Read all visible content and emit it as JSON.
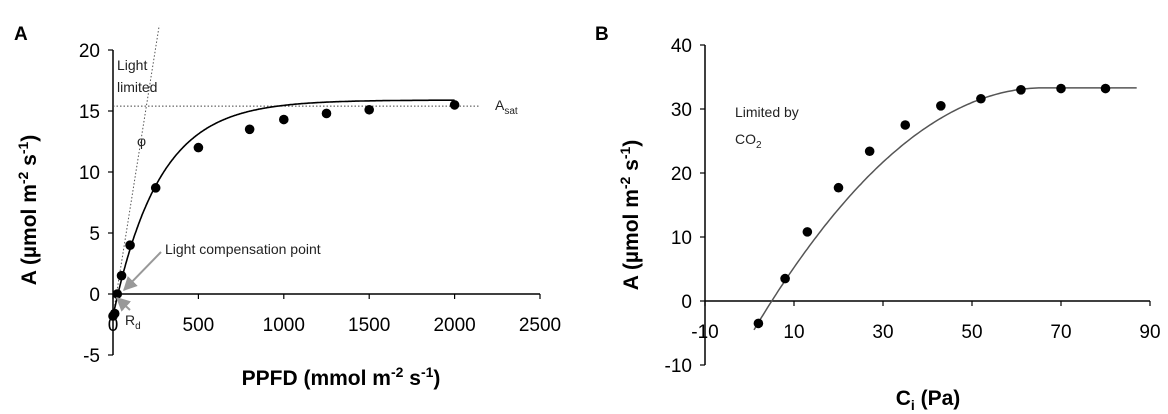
{
  "chart_data": [
    {
      "type": "scatter",
      "panel_label": "A",
      "xlabel": "PPFD (mmol m-2 s-1)",
      "xlabel_parts": {
        "pre": "PPFD (mmol m",
        "sup1": "-2",
        "mid": " s",
        "sup2": "-1",
        "post": ")"
      },
      "ylabel": "A (µmol m-2 s-1)",
      "ylabel_parts": {
        "pre": "A (µmol m",
        "sup1": "-2",
        "mid": " s",
        "sup2": "-1",
        "post": ")"
      },
      "xlim": [
        0,
        2500
      ],
      "ylim": [
        -5,
        20
      ],
      "xticks": [
        0,
        500,
        1000,
        1500,
        2000,
        2500
      ],
      "yticks": [
        -5,
        0,
        5,
        10,
        15,
        20
      ],
      "series": [
        {
          "x": [
            0,
            10,
            25,
            50,
            100,
            250,
            500,
            800,
            1000,
            1250,
            1500,
            2000
          ],
          "y": [
            -1.8,
            -1.6,
            0,
            1.5,
            4.0,
            8.7,
            12.0,
            13.5,
            14.3,
            14.8,
            15.1,
            15.5
          ]
        }
      ],
      "fit_curve": {
        "Amax": 17.7,
        "Rd": 1.8,
        "k": 0.0037
      },
      "reference_lines": [
        {
          "kind": "horizontal",
          "y": 15.4,
          "x_range": [
            0,
            2150
          ],
          "style": "dotted"
        },
        {
          "kind": "initial_slope",
          "slope": 0.088,
          "intercept": -1.8,
          "style": "dotted"
        }
      ],
      "annotations": {
        "light_limited_1": "Light",
        "light_limited_2": "limited",
        "phi": "φ",
        "asat_main": "A",
        "asat_sub": "sat",
        "lcp": "Light compensation point",
        "rd_main": "R",
        "rd_sub": "d"
      }
    },
    {
      "type": "scatter",
      "panel_label": "B",
      "xlabel": "Ci (Pa)",
      "xlabel_parts": {
        "main": "C",
        "sub": "i",
        "post": " (Pa)"
      },
      "ylabel": "A (µmol m-2 s-1)",
      "ylabel_parts": {
        "pre": "A (µmol m",
        "sup1": "-2",
        "mid": " s",
        "sup2": "-1",
        "post": ")"
      },
      "xlim": [
        -10,
        90
      ],
      "ylim": [
        -10,
        40
      ],
      "xticks": [
        -10,
        10,
        30,
        50,
        70,
        90
      ],
      "yticks": [
        -10,
        0,
        10,
        20,
        30,
        40
      ],
      "series": [
        {
          "x": [
            2,
            8,
            13,
            20,
            27,
            35,
            43,
            52,
            61,
            70,
            80
          ],
          "y": [
            -3.5,
            3.5,
            10.8,
            17.7,
            23.4,
            27.5,
            30.5,
            31.6,
            33.0,
            33.2,
            33.2
          ]
        }
      ],
      "fit_curve": {
        "x_start": 1,
        "x_end": 87,
        "x_plateau": 66,
        "y_plateau": 33.3,
        "x_zero": 5
      },
      "annotations": {
        "limited_1": "Limited by",
        "limited_2_main": "CO",
        "limited_2_sub": "2"
      }
    }
  ]
}
